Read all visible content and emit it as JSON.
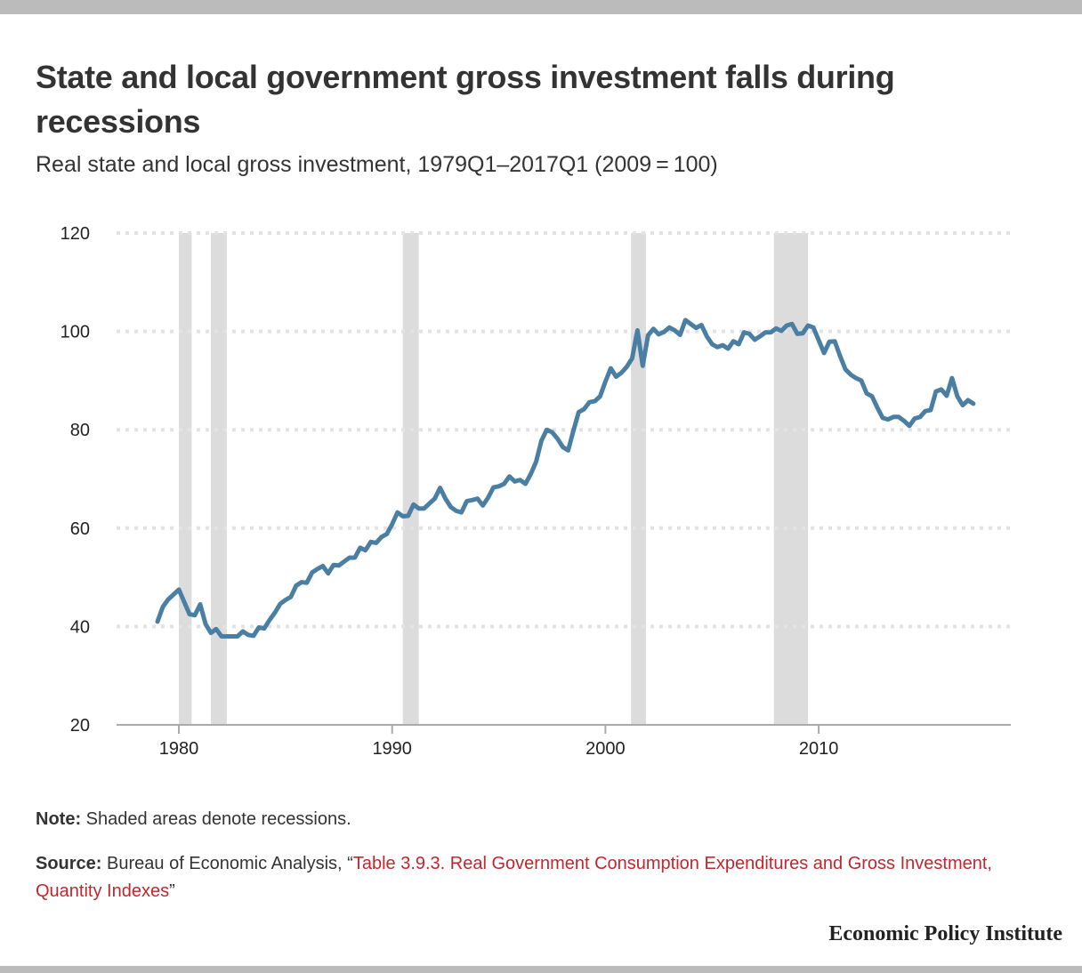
{
  "header": {
    "title": "State and local government gross investment falls during recessions",
    "subtitle": "Real state and local gross investment, 1979Q1–2017Q1 (2009 = 100)"
  },
  "footer": {
    "note_label": "Note:",
    "note_text": " Shaded areas denote recessions.",
    "source_label": "Source:",
    "source_text": " Bureau of Economic Analysis, “",
    "source_link": "Table 3.9.3. Real Government Consumption Expenditures and Gross Investment, Quantity Indexes",
    "source_close": "”",
    "logo": "Economic Policy Institute"
  },
  "colors": {
    "line": "#4a7fa3",
    "recession": "#dcdcdc",
    "grid": "#e3e3e3",
    "axis": "#aaaaaa",
    "link": "#c1272d"
  },
  "chart_data": {
    "type": "line",
    "title": "State and local government gross investment falls during recessions",
    "subtitle": "Real state and local gross investment, 1979Q1–2017Q1 (2009 = 100)",
    "xlabel": "",
    "ylabel": "",
    "xlim": [
      1977.3,
      2019.2
    ],
    "ylim": [
      20,
      120
    ],
    "x_ticks": [
      1980,
      1990,
      2000,
      2010
    ],
    "x_tick_labels": [
      "1980",
      "1990",
      "2000",
      "2010"
    ],
    "y_ticks": [
      20,
      40,
      60,
      80,
      100,
      120
    ],
    "y_tick_labels": [
      "20",
      "40",
      "60",
      "80",
      "100",
      "120"
    ],
    "grid": "horizontal dotted",
    "legend": "none",
    "recessions": [
      {
        "start": 1980.0,
        "end": 1980.6
      },
      {
        "start": 1981.5,
        "end": 1982.25
      },
      {
        "start": 1990.5,
        "end": 1991.25
      },
      {
        "start": 2001.2,
        "end": 2001.9
      },
      {
        "start": 2007.9,
        "end": 2009.5
      }
    ],
    "series": [
      {
        "name": "Real state and local gross investment (2009 = 100)",
        "x_start": 1979.0,
        "x_step": 0.25,
        "values": [
          41.0,
          44.0,
          45.5,
          46.5,
          47.5,
          45.0,
          42.5,
          42.3,
          44.5,
          40.5,
          38.7,
          39.5,
          38.0,
          38.0,
          38.0,
          38.0,
          39.0,
          38.3,
          38.1,
          39.8,
          39.6,
          41.3,
          42.8,
          44.6,
          45.4,
          46.0,
          48.3,
          49.0,
          48.9,
          51.0,
          51.7,
          52.3,
          50.8,
          52.5,
          52.4,
          53.2,
          54.0,
          54.0,
          56.0,
          55.5,
          57.2,
          57.0,
          58.2,
          58.8,
          60.8,
          63.2,
          62.4,
          62.5,
          64.8,
          64.0,
          64.0,
          65.0,
          66.0,
          68.2,
          66.0,
          64.3,
          63.5,
          63.2,
          65.5,
          65.7,
          66.0,
          64.6,
          66.2,
          68.3,
          68.5,
          69.0,
          70.5,
          69.5,
          69.8,
          69.0,
          71.0,
          73.5,
          77.8,
          80.0,
          79.5,
          78.2,
          76.5,
          75.8,
          79.8,
          83.6,
          84.2,
          85.6,
          85.8,
          86.8,
          89.8,
          92.5,
          90.8,
          91.6,
          92.8,
          94.5,
          100.2,
          93.0,
          99.2,
          100.5,
          99.4,
          99.9,
          100.8,
          100.2,
          99.3,
          102.3,
          101.5,
          100.7,
          101.3,
          99.0,
          97.4,
          96.8,
          97.2,
          96.5,
          98.0,
          97.4,
          99.8,
          99.5,
          98.3,
          99.0,
          99.8,
          99.8,
          100.6,
          100.1,
          101.2,
          101.5,
          99.5,
          99.6,
          101.2,
          100.8,
          98.2,
          95.6,
          97.9,
          98.0,
          95.0,
          92.3,
          91.2,
          90.5,
          90.0,
          87.4,
          86.8,
          84.5,
          82.4,
          82.1,
          82.6,
          82.6,
          81.8,
          80.8,
          82.3,
          82.6,
          83.8,
          84.0,
          87.8,
          88.2,
          86.9,
          90.5,
          86.8,
          85.0,
          86.0,
          85.3
        ]
      }
    ]
  }
}
